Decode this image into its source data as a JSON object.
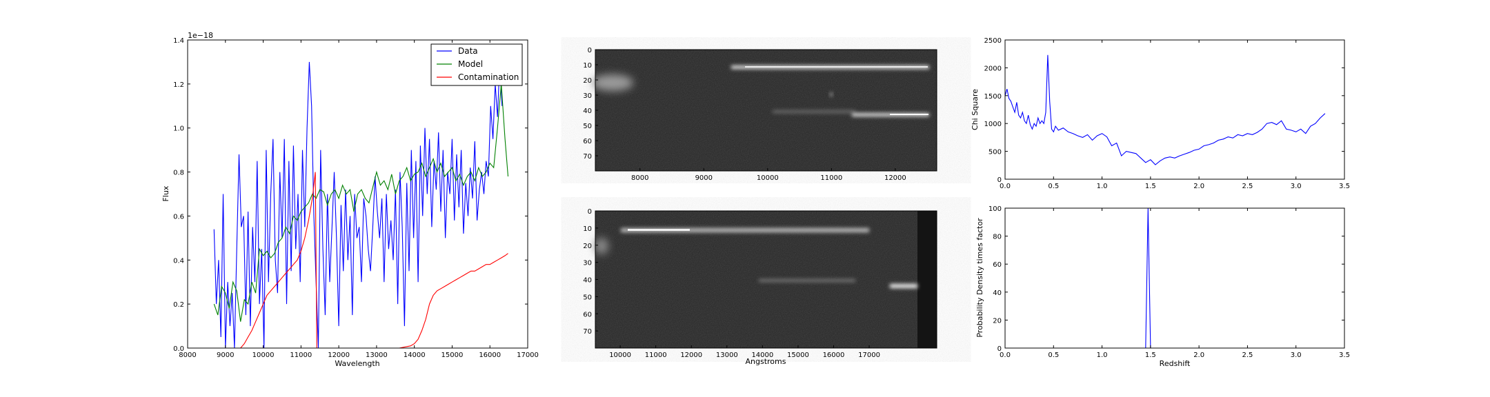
{
  "chart_data": [
    {
      "type": "line",
      "xlabel": "Wavelength",
      "ylabel": "Flux",
      "offset_label": "1e−18",
      "xlim": [
        8000,
        17000
      ],
      "ylim": [
        0,
        1.4
      ],
      "xticks": [
        8000,
        9000,
        10000,
        11000,
        12000,
        13000,
        14000,
        15000,
        16000,
        17000
      ],
      "xtick_labels": [
        "8000",
        "9000",
        "10000",
        "11000",
        "12000",
        "13000",
        "14000",
        "15000",
        "16000",
        "17000"
      ],
      "yticks": [
        0,
        0.2,
        0.4,
        0.6,
        0.8,
        1.0,
        1.2,
        1.4
      ],
      "ytick_labels": [
        "0.0",
        "0.2",
        "0.4",
        "0.6",
        "0.8",
        "1.0",
        "1.2",
        "1.4"
      ],
      "legend_position": "top-right",
      "series": [
        {
          "name": "Data",
          "color": "#0000ff",
          "x": [
            8700,
            8760,
            8820,
            8880,
            8940,
            9000,
            9060,
            9120,
            9180,
            9240,
            9300,
            9360,
            9420,
            9480,
            9540,
            9600,
            9660,
            9720,
            9780,
            9840,
            9900,
            9960,
            10020,
            10080,
            10140,
            10200,
            10260,
            10320,
            10380,
            10440,
            10500,
            10560,
            10620,
            10680,
            10740,
            10800,
            10860,
            10920,
            10980,
            11040,
            11100,
            11160,
            11220,
            11280,
            11340,
            11400,
            11460,
            11520,
            11580,
            11640,
            11700,
            11760,
            11820,
            11880,
            11940,
            12000,
            12060,
            12120,
            12180,
            12240,
            12300,
            12360,
            12420,
            12480,
            12540,
            12600,
            12660,
            12720,
            12780,
            12840,
            12900,
            12960,
            13020,
            13080,
            13140,
            13200,
            13260,
            13320,
            13380,
            13440,
            13500,
            13560,
            13620,
            13680,
            13740,
            13800,
            13860,
            13920,
            13980,
            14040,
            14100,
            14160,
            14220,
            14280,
            14340,
            14400,
            14460,
            14520,
            14580,
            14640,
            14700,
            14760,
            14820,
            14880,
            14940,
            15000,
            15060,
            15120,
            15180,
            15240,
            15300,
            15360,
            15420,
            15480,
            15540,
            15600,
            15660,
            15720,
            15780,
            15840,
            15900,
            15960,
            16020,
            16080,
            16140,
            16200,
            16260,
            16320
          ],
          "y": [
            0.54,
            0.2,
            0.4,
            0.05,
            0.7,
            0.0,
            0.3,
            0.1,
            0.25,
            0.0,
            0.45,
            0.88,
            0.55,
            0.6,
            0.15,
            0.62,
            0.1,
            0.55,
            0.3,
            0.85,
            0.2,
            0.45,
            0.0,
            0.9,
            0.3,
            0.7,
            0.95,
            0.4,
            0.25,
            0.8,
            0.5,
            0.95,
            0.2,
            0.85,
            0.35,
            0.92,
            0.45,
            0.7,
            0.3,
            0.9,
            0.55,
            1.0,
            1.3,
            1.1,
            0.6,
            0.3,
            0.0,
            0.9,
            0.45,
            0.15,
            0.7,
            0.3,
            0.55,
            0.8,
            0.5,
            0.1,
            0.65,
            0.35,
            0.72,
            0.4,
            0.6,
            0.15,
            0.7,
            0.5,
            0.55,
            0.3,
            0.68,
            0.6,
            0.45,
            0.35,
            0.55,
            0.78,
            0.62,
            0.5,
            0.68,
            0.3,
            0.7,
            0.45,
            0.58,
            0.4,
            0.72,
            0.2,
            0.8,
            0.55,
            0.1,
            0.75,
            0.35,
            0.9,
            0.5,
            0.85,
            0.3,
            0.92,
            0.6,
            1.0,
            0.7,
            0.95,
            0.55,
            0.85,
            0.72,
            0.98,
            0.62,
            0.9,
            0.5,
            0.8,
            0.7,
            0.95,
            0.58,
            0.88,
            0.64,
            0.9,
            0.52,
            0.75,
            0.6,
            0.82,
            0.68,
            0.94,
            0.58,
            0.72,
            0.8,
            0.7,
            0.85,
            0.78,
            1.1,
            0.95,
            1.2,
            1.05,
            1.3,
            1.1
          ]
        },
        {
          "name": "Model",
          "color": "#008000",
          "x": [
            8700,
            8800,
            8900,
            9000,
            9100,
            9200,
            9300,
            9400,
            9500,
            9600,
            9700,
            9800,
            9900,
            10000,
            10100,
            10200,
            10300,
            10400,
            10500,
            10600,
            10700,
            10800,
            10900,
            11000,
            11100,
            11200,
            11300,
            11400,
            11500,
            11600,
            11700,
            11800,
            11900,
            12000,
            12100,
            12200,
            12300,
            12400,
            12500,
            12600,
            12700,
            12800,
            12900,
            13000,
            13100,
            13200,
            13300,
            13400,
            13500,
            13600,
            13700,
            13800,
            13900,
            14000,
            14100,
            14200,
            14300,
            14400,
            14500,
            14600,
            14700,
            14800,
            14900,
            15000,
            15100,
            15200,
            15300,
            15400,
            15500,
            15600,
            15700,
            15800,
            15900,
            16000,
            16100,
            16200,
            16300,
            16400,
            16480
          ],
          "y": [
            0.2,
            0.15,
            0.28,
            0.25,
            0.18,
            0.3,
            0.26,
            0.12,
            0.22,
            0.2,
            0.3,
            0.25,
            0.45,
            0.42,
            0.44,
            0.41,
            0.43,
            0.48,
            0.5,
            0.55,
            0.52,
            0.6,
            0.58,
            0.62,
            0.64,
            0.66,
            0.7,
            0.68,
            0.72,
            0.71,
            0.65,
            0.7,
            0.72,
            0.68,
            0.74,
            0.7,
            0.72,
            0.62,
            0.7,
            0.72,
            0.68,
            0.66,
            0.73,
            0.8,
            0.74,
            0.76,
            0.72,
            0.79,
            0.7,
            0.76,
            0.78,
            0.82,
            0.76,
            0.79,
            0.8,
            0.84,
            0.78,
            0.82,
            0.86,
            0.8,
            0.84,
            0.78,
            0.8,
            0.82,
            0.76,
            0.79,
            0.74,
            0.78,
            0.8,
            0.76,
            0.82,
            0.78,
            0.8,
            0.84,
            0.82,
            1.0,
            1.2,
            0.95,
            0.78
          ]
        },
        {
          "name": "Contamination",
          "color": "#ff0000",
          "x": [
            9400,
            9500,
            9600,
            9700,
            9800,
            9900,
            10000,
            10100,
            10200,
            10300,
            10400,
            10500,
            10600,
            10700,
            10800,
            10900,
            11000,
            11100,
            11200,
            11300,
            11380,
            11400,
            11420,
            11500,
            12000,
            13000,
            13600,
            13900,
            14000,
            14100,
            14200,
            14300,
            14400,
            14500,
            14600,
            14700,
            14800,
            14900,
            15000,
            15100,
            15200,
            15300,
            15400,
            15500,
            15600,
            15700,
            15800,
            15900,
            16000,
            16100,
            16200,
            16300,
            16400,
            16480
          ],
          "y": [
            0.0,
            0.02,
            0.05,
            0.08,
            0.12,
            0.16,
            0.2,
            0.24,
            0.26,
            0.28,
            0.3,
            0.32,
            0.34,
            0.36,
            0.38,
            0.4,
            0.44,
            0.5,
            0.58,
            0.68,
            0.8,
            0.4,
            0.0,
            0.0,
            0.0,
            0.0,
            0.0,
            0.01,
            0.02,
            0.04,
            0.08,
            0.13,
            0.2,
            0.24,
            0.26,
            0.27,
            0.28,
            0.29,
            0.3,
            0.31,
            0.32,
            0.33,
            0.34,
            0.35,
            0.35,
            0.36,
            0.37,
            0.38,
            0.38,
            0.39,
            0.4,
            0.41,
            0.42,
            0.43
          ]
        }
      ]
    },
    {
      "type": "heatmap",
      "xlim": [
        7300,
        12650
      ],
      "ylim": [
        80,
        0
      ],
      "xticks": [
        8000,
        9000,
        10000,
        11000,
        12000
      ],
      "xtick_labels": [
        "8000",
        "9000",
        "10000",
        "11000",
        "12000"
      ],
      "yticks": [
        0,
        10,
        20,
        30,
        40,
        50,
        60,
        70
      ],
      "ytick_labels": [
        "0",
        "10",
        "20",
        "30",
        "40",
        "50",
        "60",
        "70"
      ]
    },
    {
      "type": "heatmap",
      "xlabel": "Angstroms",
      "xlim": [
        9300,
        18900
      ],
      "ylim": [
        80,
        0
      ],
      "xticks": [
        10000,
        11000,
        12000,
        13000,
        14000,
        15000,
        16000,
        17000
      ],
      "xtick_labels": [
        "10000",
        "11000",
        "12000",
        "13000",
        "14000",
        "15000",
        "16000",
        "17000"
      ],
      "yticks": [
        0,
        10,
        20,
        30,
        40,
        50,
        60,
        70
      ],
      "ytick_labels": [
        "0",
        "10",
        "20",
        "30",
        "40",
        "50",
        "60",
        "70"
      ]
    },
    {
      "type": "line",
      "ylabel": "Chi Square",
      "xlim": [
        0,
        3.5
      ],
      "ylim": [
        0,
        2500
      ],
      "xticks": [
        0,
        0.5,
        1.0,
        1.5,
        2.0,
        2.5,
        3.0,
        3.5
      ],
      "xtick_labels": [
        "0.0",
        "0.5",
        "1.0",
        "1.5",
        "2.0",
        "2.5",
        "3.0",
        "3.5"
      ],
      "yticks": [
        0,
        500,
        1000,
        1500,
        2000,
        2500
      ],
      "ytick_labels": [
        "0",
        "500",
        "1000",
        "1500",
        "2000",
        "2500"
      ],
      "series": [
        {
          "color": "#0000ff",
          "x": [
            0.0,
            0.02,
            0.04,
            0.06,
            0.08,
            0.1,
            0.12,
            0.14,
            0.16,
            0.18,
            0.2,
            0.22,
            0.24,
            0.26,
            0.28,
            0.3,
            0.32,
            0.34,
            0.36,
            0.38,
            0.4,
            0.42,
            0.44,
            0.46,
            0.48,
            0.5,
            0.52,
            0.55,
            0.6,
            0.65,
            0.7,
            0.75,
            0.8,
            0.85,
            0.9,
            0.95,
            1.0,
            1.05,
            1.1,
            1.15,
            1.2,
            1.25,
            1.3,
            1.35,
            1.4,
            1.45,
            1.5,
            1.55,
            1.6,
            1.65,
            1.7,
            1.75,
            1.8,
            1.85,
            1.9,
            1.95,
            2.0,
            2.05,
            2.1,
            2.15,
            2.2,
            2.25,
            2.3,
            2.35,
            2.4,
            2.45,
            2.5,
            2.55,
            2.6,
            2.65,
            2.7,
            2.75,
            2.8,
            2.85,
            2.9,
            2.95,
            3.0,
            3.05,
            3.1,
            3.15,
            3.2,
            3.25,
            3.3
          ],
          "y": [
            1500,
            1620,
            1450,
            1400,
            1300,
            1200,
            1380,
            1150,
            1100,
            1200,
            1050,
            1000,
            1150,
            980,
            900,
            1000,
            950,
            1100,
            1000,
            1050,
            1000,
            1200,
            2230,
            1400,
            900,
            850,
            950,
            880,
            920,
            850,
            820,
            780,
            750,
            800,
            700,
            780,
            820,
            760,
            600,
            650,
            420,
            500,
            480,
            460,
            380,
            300,
            350,
            260,
            330,
            380,
            400,
            380,
            420,
            450,
            480,
            520,
            540,
            600,
            620,
            650,
            700,
            720,
            760,
            740,
            800,
            780,
            820,
            800,
            840,
            900,
            1000,
            1020,
            980,
            1050,
            900,
            880,
            850,
            900,
            820,
            950,
            1000,
            1100,
            1180
          ]
        }
      ]
    },
    {
      "type": "line",
      "xlabel": "Redshift",
      "ylabel": "Probability Density times factor",
      "xlim": [
        0,
        3.5
      ],
      "ylim": [
        0,
        100
      ],
      "xticks": [
        0,
        0.5,
        1.0,
        1.5,
        2.0,
        2.5,
        3.0,
        3.5
      ],
      "xtick_labels": [
        "0.0",
        "0.5",
        "1.0",
        "1.5",
        "2.0",
        "2.5",
        "3.0",
        "3.5"
      ],
      "yticks": [
        0,
        20,
        40,
        60,
        80,
        100
      ],
      "ytick_labels": [
        "0",
        "20",
        "40",
        "60",
        "80",
        "100"
      ],
      "series": [
        {
          "color": "#0000ff",
          "x": [
            0.0,
            1.45,
            1.465,
            1.475,
            1.485,
            1.5,
            3.3
          ],
          "y": [
            0,
            0,
            60,
            100,
            60,
            0,
            0
          ]
        }
      ]
    }
  ]
}
